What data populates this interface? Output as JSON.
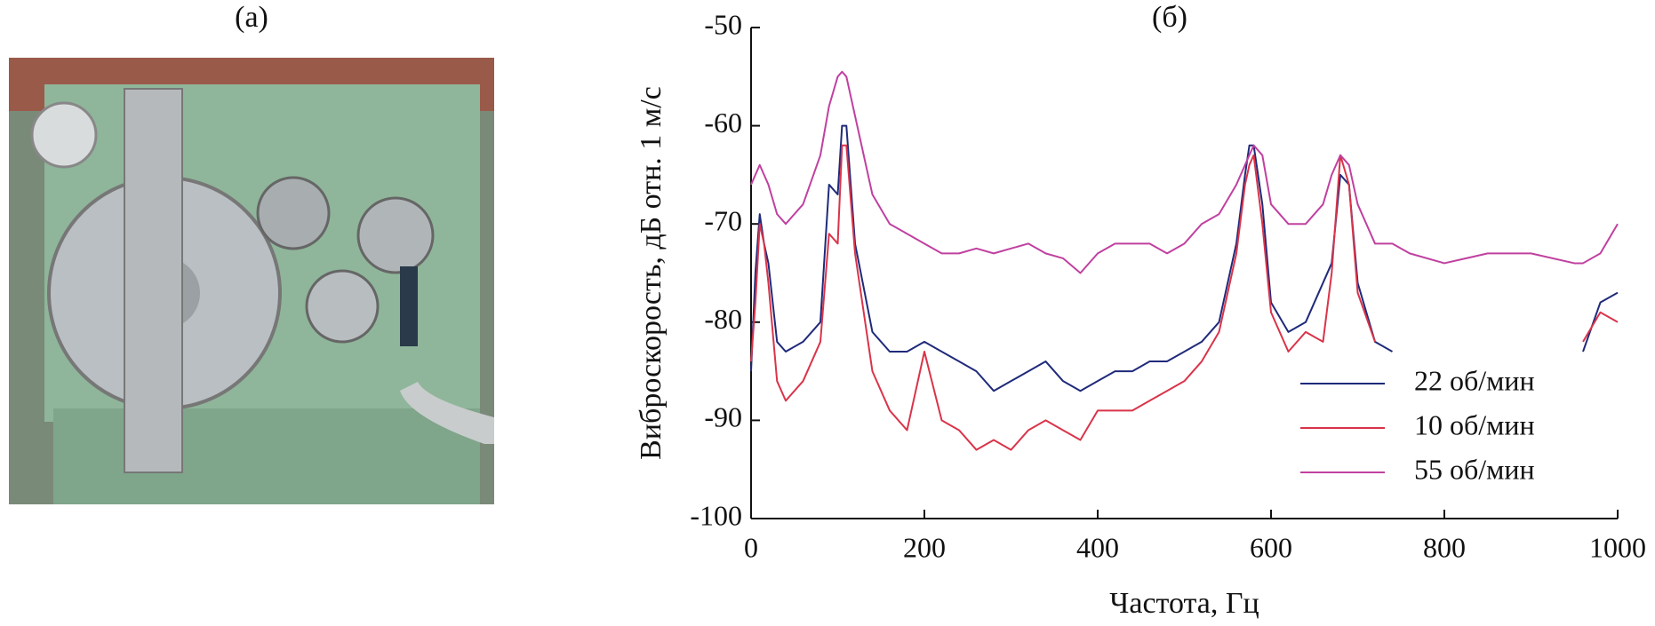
{
  "photo_label": "(а)",
  "chart_data": {
    "type": "line",
    "title": "(б)",
    "xlabel": "Частота, Гц",
    "ylabel": "Виброскорость, дБ отн. 1 м/с",
    "x": [
      0,
      5,
      10,
      15,
      20,
      30,
      40,
      60,
      80,
      90,
      100,
      105,
      110,
      120,
      140,
      160,
      180,
      200,
      220,
      240,
      260,
      280,
      300,
      320,
      340,
      360,
      380,
      400,
      420,
      440,
      460,
      480,
      500,
      520,
      540,
      560,
      570,
      575,
      580,
      590,
      600,
      620,
      640,
      660,
      670,
      680,
      690,
      700,
      720,
      740,
      760,
      800,
      850,
      900,
      950,
      960,
      980,
      1000
    ],
    "series": [
      {
        "name": "22 об/мин",
        "color": "#1f2a7a",
        "values": [
          -85,
          -75,
          -69,
          -72,
          -74,
          -82,
          -83,
          -82,
          -80,
          -66,
          -67,
          -60,
          -60,
          -72,
          -81,
          -83,
          -83,
          -82,
          -83,
          -84,
          -85,
          -87,
          -86,
          -85,
          -84,
          -86,
          -87,
          -86,
          -85,
          -85,
          -84,
          -84,
          -83,
          -82,
          -80,
          -72,
          -65,
          -62,
          -62,
          -68,
          -78,
          -81,
          -80,
          -76,
          -74,
          -65,
          -66,
          -76,
          -82,
          -83,
          null,
          null,
          null,
          null,
          null,
          -83,
          -78,
          -77
        ]
      },
      {
        "name": "10 об/мин",
        "color": "#d9344a",
        "values": [
          -84,
          -78,
          -70,
          -72,
          -76,
          -86,
          -88,
          -86,
          -82,
          -71,
          -72,
          -62,
          -62,
          -73,
          -85,
          -89,
          -91,
          -83,
          -90,
          -91,
          -93,
          -92,
          -93,
          -91,
          -90,
          -91,
          -92,
          -89,
          -89,
          -89,
          -88,
          -87,
          -86,
          -84,
          -81,
          -73,
          -66,
          -64,
          -63,
          -70,
          -79,
          -83,
          -81,
          -82,
          -75,
          -63,
          -66,
          -77,
          -82,
          null,
          null,
          null,
          null,
          null,
          null,
          -82,
          -79,
          -80
        ]
      },
      {
        "name": "55 об/мин",
        "color": "#c040a0",
        "values": [
          -66,
          -65,
          -64,
          -65,
          -66,
          -69,
          -70,
          -68,
          -63,
          -58,
          -55,
          -54.5,
          -55,
          -59,
          -67,
          -70,
          -71,
          -72,
          -73,
          -73,
          -72.5,
          -73,
          -72.5,
          -72,
          -73,
          -73.5,
          -75,
          -73,
          -72,
          -72,
          -72,
          -73,
          -72,
          -70,
          -69,
          -66,
          -64,
          -63,
          -62,
          -63,
          -68,
          -70,
          -70,
          -68,
          -65,
          -63,
          -64,
          -68,
          -72,
          -72,
          -73,
          -74,
          -73,
          -73,
          -74,
          -74,
          -73,
          -70
        ]
      }
    ],
    "xlim": [
      0,
      1000
    ],
    "xticks": [
      0,
      200,
      400,
      600,
      800,
      1000
    ],
    "ylim": [
      -100,
      -50
    ],
    "yticks": [
      -50,
      -60,
      -70,
      -80,
      -90,
      -100
    ],
    "legend": "lower right",
    "grid": false
  }
}
